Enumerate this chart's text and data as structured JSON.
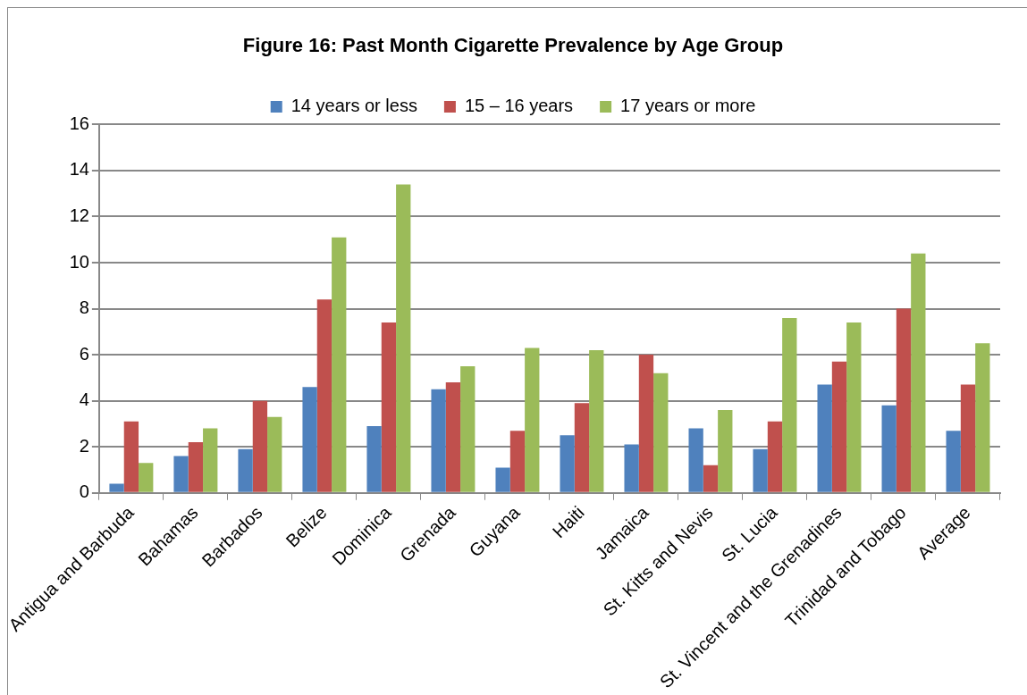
{
  "chart_data": {
    "type": "bar",
    "title": "Figure 16: Past Month Cigarette Prevalence by Age Group",
    "categories": [
      "Antigua and Barbuda",
      "Bahamas",
      "Barbados",
      "Belize",
      "Dominica",
      "Grenada",
      "Guyana",
      "Haiti",
      "Jamaica",
      "St. Kitts and Nevis",
      "St. Lucia",
      "St. Vincent and the Grenadines",
      "Trinidad and Tobago",
      "Average"
    ],
    "series": [
      {
        "name": "14 years or less",
        "color": "#4f81bd",
        "values": [
          0.4,
          1.6,
          1.9,
          4.6,
          2.9,
          4.5,
          1.1,
          2.5,
          2.1,
          2.8,
          1.9,
          4.7,
          3.8,
          2.7
        ]
      },
      {
        "name": "15 – 16 years",
        "color": "#c0504d",
        "values": [
          3.1,
          2.2,
          4.0,
          8.4,
          7.4,
          4.8,
          2.7,
          3.9,
          6.0,
          1.2,
          3.1,
          5.7,
          8.0,
          4.7
        ]
      },
      {
        "name": "17 years or more",
        "color": "#9bbb59",
        "values": [
          1.3,
          2.8,
          3.3,
          11.1,
          13.4,
          5.5,
          6.3,
          6.2,
          5.2,
          3.6,
          7.6,
          7.4,
          10.4,
          6.5
        ]
      }
    ],
    "ylim": [
      0,
      16
    ],
    "yticks": [
      0,
      2,
      4,
      6,
      8,
      10,
      12,
      14,
      16
    ],
    "grid": "y",
    "legend": "top"
  }
}
